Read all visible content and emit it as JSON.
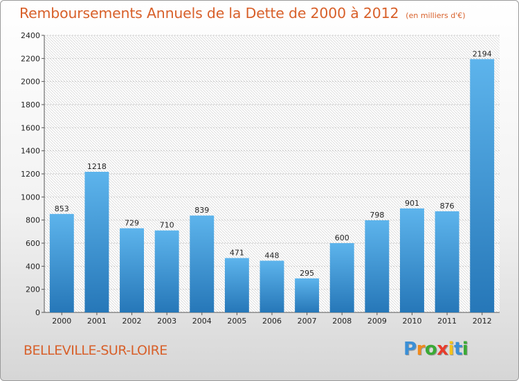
{
  "header": {
    "title": "Remboursements Annuels de la Dette de 2000 à 2012",
    "subtitle": "(en milliers d'€)"
  },
  "footer": {
    "commune": "BELLEVILLE-SUR-LOIRE",
    "logo_letters": [
      "P",
      "r",
      "o",
      "x",
      "i",
      "t",
      "i"
    ],
    "logo_colors": [
      "#3b8fd6",
      "#f08a1c",
      "#3aaa35",
      "#e83c2c",
      "#f4c21a",
      "#3b8fd6",
      "#3aaa35"
    ]
  },
  "chart_data": {
    "type": "bar",
    "categories": [
      "2000",
      "2001",
      "2002",
      "2003",
      "2004",
      "2005",
      "2006",
      "2007",
      "2008",
      "2009",
      "2010",
      "2011",
      "2012"
    ],
    "values": [
      853,
      1218,
      729,
      710,
      839,
      471,
      448,
      295,
      600,
      798,
      901,
      876,
      2194
    ],
    "title": "Remboursements Annuels de la Dette de 2000 à 2012",
    "subtitle": "(en milliers d'€)",
    "ylim": [
      0,
      2400
    ],
    "yticks": [
      0,
      200,
      400,
      600,
      800,
      1000,
      1200,
      1400,
      1600,
      1800,
      2000,
      2200,
      2400
    ],
    "grid": true,
    "bar_color_light": "#5db4ec",
    "bar_color_dark": "#2677b8"
  }
}
